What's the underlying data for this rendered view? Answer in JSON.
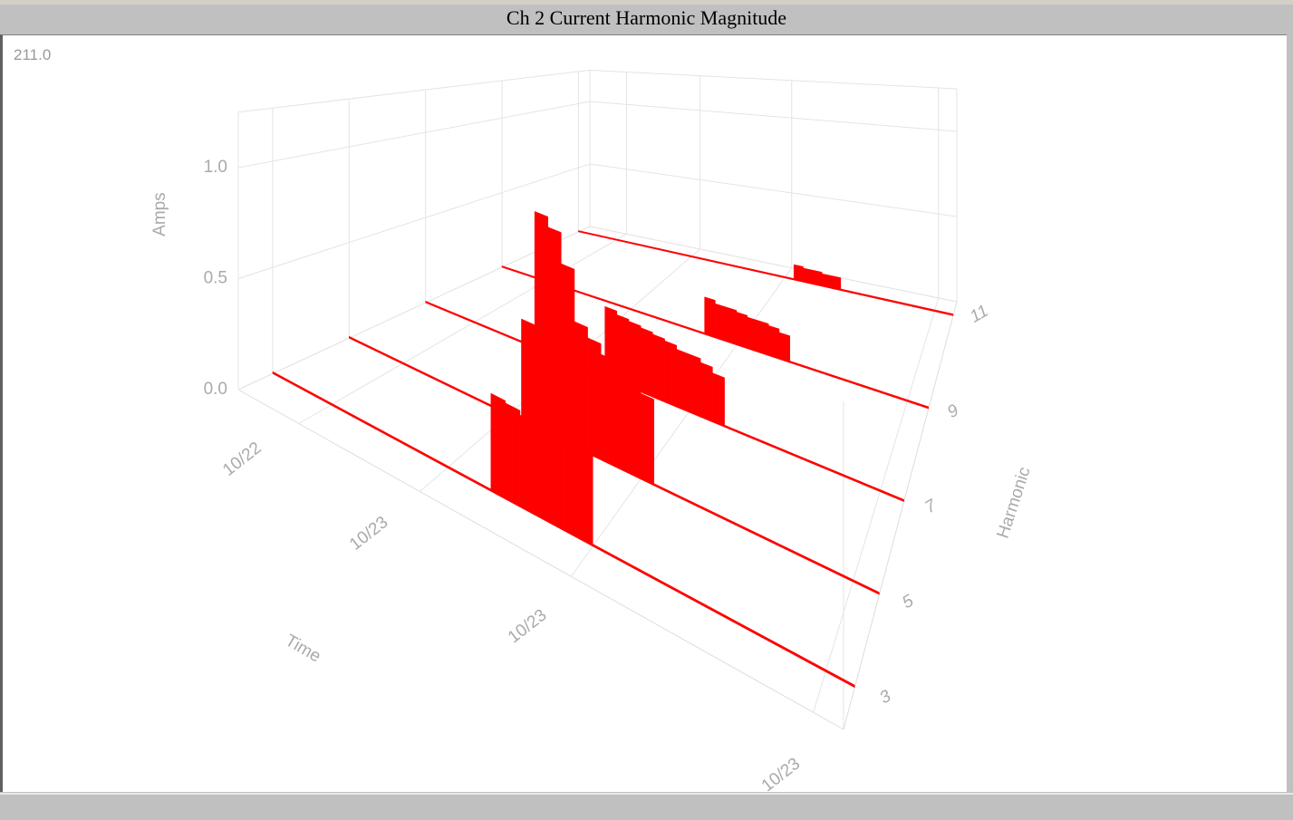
{
  "window": {
    "title": "Ch 2 Current Harmonic Magnitude",
    "corner_label": "211.0"
  },
  "chart_data": {
    "type": "bar3d",
    "zlabel": "Amps",
    "xlabel": "Time",
    "ylabel": "Harmonic",
    "x": [
      0,
      1,
      2,
      3,
      4,
      5,
      6,
      7,
      8,
      9,
      10,
      11,
      12,
      13,
      14,
      15,
      16,
      17,
      18,
      19,
      20,
      21,
      22,
      23,
      24,
      25,
      26,
      27,
      28,
      29,
      30,
      31,
      32,
      33,
      34,
      35,
      36,
      37,
      38,
      39
    ],
    "xlim": [
      0,
      40
    ],
    "xticks": [
      {
        "value": 4,
        "label": "10/22"
      },
      {
        "value": 12,
        "label": "10/23"
      },
      {
        "value": 22,
        "label": "10/23"
      },
      {
        "value": 38,
        "label": "10/23"
      }
    ],
    "ylim": [
      2.1,
      11.3
    ],
    "yticks": [
      3,
      5,
      7,
      9,
      11
    ],
    "zlim": [
      0,
      1.25
    ],
    "zticks": [
      {
        "value": 0,
        "label": "0.0"
      },
      {
        "value": 0.5,
        "label": "0.5"
      },
      {
        "value": 1,
        "label": "1.0"
      }
    ],
    "grid": true,
    "series": [
      {
        "harmonic": 11,
        "color": "#ff0000",
        "values": [
          0.01,
          0.01,
          0.01,
          0.01,
          0.01,
          0.01,
          0.01,
          0.01,
          0.01,
          0.01,
          0.01,
          0.01,
          0.01,
          0.01,
          0.01,
          0.01,
          0.01,
          0.01,
          0.01,
          0.01,
          0.01,
          0.01,
          0.01,
          0.1,
          0.09,
          0.09,
          0.08,
          0.08,
          0.01,
          0.01,
          0.01,
          0.01,
          0.01,
          0.01,
          0.01,
          0.01,
          0.01,
          0.01,
          0.01,
          0.01
        ]
      },
      {
        "harmonic": 9,
        "color": "#ff0000",
        "values": [
          0.01,
          0.01,
          0.01,
          0.01,
          0.01,
          0.01,
          0.01,
          0.01,
          0.01,
          0.01,
          0.01,
          0.01,
          0.01,
          0.01,
          0.01,
          0.01,
          0.01,
          0.01,
          0.01,
          0.22,
          0.2,
          0.2,
          0.19,
          0.18,
          0.18,
          0.17,
          0.15,
          0.01,
          0.01,
          0.01,
          0.01,
          0.01,
          0.01,
          0.01,
          0.01,
          0.01,
          0.01,
          0.01,
          0.01,
          0.01
        ]
      },
      {
        "harmonic": 7,
        "color": "#ff0000",
        "values": [
          0.01,
          0.01,
          0.01,
          0.01,
          0.01,
          0.01,
          0.01,
          0.01,
          0.01,
          0.01,
          0.01,
          0.01,
          0.01,
          0.01,
          0.01,
          0.38,
          0.36,
          0.35,
          0.34,
          0.33,
          0.32,
          0.3,
          0.3,
          0.28,
          0.25,
          0.01,
          0.01,
          0.01,
          0.01,
          0.01,
          0.01,
          0.01,
          0.01,
          0.01,
          0.01,
          0.01,
          0.01,
          0.01,
          0.01,
          0.01
        ]
      },
      {
        "harmonic": 5,
        "color": "#ff0000",
        "values": [
          0.01,
          0.01,
          0.01,
          0.01,
          0.01,
          0.01,
          0.01,
          0.01,
          0.01,
          0.01,
          0.01,
          0.01,
          0.01,
          0.5,
          1.05,
          1.0,
          0.85,
          0.6,
          0.55,
          0.5,
          0.48,
          0.45,
          0.4,
          0.01,
          0.01,
          0.01,
          0.01,
          0.01,
          0.01,
          0.01,
          0.01,
          0.01,
          0.01,
          0.01,
          0.01,
          0.01,
          0.01,
          0.01,
          0.01,
          0.01
        ]
      },
      {
        "harmonic": 3,
        "color": "#ff0000",
        "values": [
          0.01,
          0.01,
          0.01,
          0.01,
          0.01,
          0.01,
          0.01,
          0.01,
          0.01,
          0.01,
          0.01,
          0.01,
          0.01,
          0.01,
          0.01,
          0.43,
          0.42,
          0.4,
          0.38,
          0.42,
          0.45,
          0.4,
          0.01,
          0.01,
          0.01,
          0.01,
          0.01,
          0.01,
          0.01,
          0.01,
          0.01,
          0.01,
          0.01,
          0.01,
          0.01,
          0.01,
          0.01,
          0.01,
          0.01,
          0.01
        ]
      }
    ]
  }
}
